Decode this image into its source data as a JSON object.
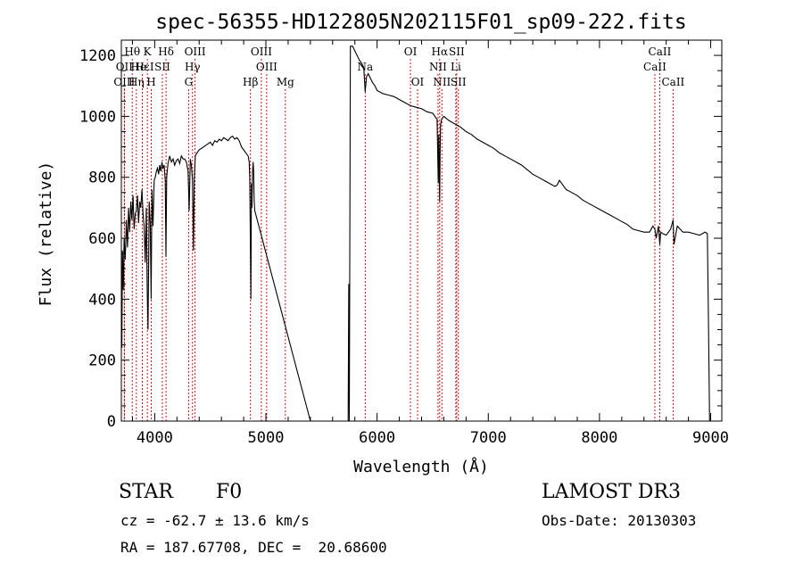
{
  "chart_data": {
    "type": "line",
    "title": "spec-56355-HD122805N202115F01_sp09-222.fits",
    "xlabel": "Wavelength (Å)",
    "ylabel": "Flux (relative)",
    "xlim": [
      3700,
      9100
    ],
    "ylim": [
      0,
      1250
    ],
    "xticks": [
      4000,
      5000,
      6000,
      7000,
      8000,
      9000
    ],
    "yticks": [
      0,
      200,
      400,
      600,
      800,
      1000,
      1200
    ],
    "series": [
      {
        "name": "flux",
        "x": [
          3700,
          3705,
          3710,
          3718,
          3725,
          3735,
          3745,
          3755,
          3765,
          3775,
          3785,
          3795,
          3805,
          3815,
          3825,
          3835,
          3845,
          3855,
          3865,
          3875,
          3885,
          3895,
          3905,
          3915,
          3925,
          3933,
          3940,
          3950,
          3960,
          3968,
          3975,
          3985,
          3995,
          4005,
          4015,
          4025,
          4035,
          4045,
          4055,
          4065,
          4075,
          4085,
          4095,
          4101,
          4108,
          4120,
          4135,
          4150,
          4165,
          4180,
          4195,
          4210,
          4225,
          4240,
          4255,
          4270,
          4285,
          4300,
          4310,
          4320,
          4330,
          4340,
          4348,
          4356,
          4365,
          4380,
          4400,
          4420,
          4440,
          4460,
          4480,
          4500,
          4520,
          4540,
          4560,
          4580,
          4600,
          4620,
          4640,
          4660,
          4680,
          4700,
          4720,
          4740,
          4760,
          4780,
          4800,
          4820,
          4840,
          4850,
          4855,
          4860,
          4865,
          4870,
          4875,
          4880,
          4885,
          4890,
          4895,
          4900,
          5400,
          5600,
          5700,
          5740,
          5745,
          5750,
          5760,
          5780,
          5800,
          5820,
          5840,
          5860,
          5880,
          5893,
          5905,
          5920,
          5940,
          5960,
          5980,
          6000,
          6050,
          6100,
          6150,
          6200,
          6250,
          6300,
          6350,
          6400,
          6450,
          6500,
          6540,
          6550,
          6555,
          6560,
          6563,
          6566,
          6570,
          6580,
          6600,
          6650,
          6700,
          6750,
          6800,
          6850,
          6900,
          6950,
          7000,
          7050,
          7100,
          7150,
          7200,
          7250,
          7300,
          7350,
          7400,
          7450,
          7500,
          7550,
          7600,
          7620,
          7640,
          7660,
          7700,
          7750,
          7800,
          7850,
          7900,
          7950,
          8000,
          8050,
          8100,
          8150,
          8200,
          8250,
          8300,
          8350,
          8400,
          8450,
          8480,
          8498,
          8510,
          8530,
          8542,
          8550,
          8570,
          8600,
          8640,
          8662,
          8670,
          8700,
          8750,
          8800,
          8850,
          8900,
          8950,
          8970,
          8980,
          8990,
          9000
        ],
        "y": [
          390,
          240,
          560,
          430,
          600,
          530,
          660,
          570,
          700,
          620,
          720,
          660,
          740,
          630,
          680,
          690,
          740,
          650,
          720,
          700,
          760,
          680,
          640,
          520,
          700,
          430,
          300,
          720,
          650,
          400,
          760,
          640,
          790,
          800,
          820,
          830,
          810,
          840,
          820,
          850,
          830,
          840,
          790,
          540,
          800,
          845,
          870,
          850,
          860,
          840,
          855,
          860,
          845,
          870,
          860,
          860,
          850,
          820,
          690,
          860,
          840,
          790,
          560,
          800,
          870,
          880,
          890,
          895,
          900,
          905,
          910,
          915,
          905,
          920,
          915,
          925,
          920,
          930,
          925,
          920,
          930,
          935,
          925,
          930,
          920,
          900,
          890,
          880,
          870,
          850,
          800,
          600,
          400,
          780,
          700,
          820,
          850,
          820,
          720,
          690,
          0,
          0,
          0,
          0,
          450,
          0,
          1230,
          1230,
          1215,
          1200,
          1185,
          1175,
          1160,
          1080,
          1130,
          1140,
          1125,
          1110,
          1100,
          1085,
          1075,
          1070,
          1065,
          1055,
          1045,
          1035,
          1030,
          1025,
          1015,
          1010,
          990,
          780,
          940,
          800,
          720,
          870,
          970,
          990,
          1000,
          985,
          975,
          965,
          950,
          940,
          925,
          915,
          905,
          895,
          880,
          870,
          860,
          850,
          840,
          825,
          810,
          800,
          790,
          780,
          770,
          775,
          790,
          780,
          760,
          750,
          740,
          725,
          715,
          705,
          695,
          685,
          675,
          665,
          655,
          645,
          630,
          625,
          620,
          620,
          640,
          630,
          600,
          640,
          580,
          620,
          615,
          610,
          630,
          660,
          580,
          640,
          620,
          620,
          615,
          610,
          620,
          615,
          340,
          0,
          0
        ]
      }
    ],
    "line_markers": [
      {
        "name": "Hθ",
        "wavelength": 3798,
        "row": 0
      },
      {
        "name": "OII",
        "wavelength": 3727,
        "row": 1
      },
      {
        "name": "OIII",
        "wavelength": 3727,
        "row": 2
      },
      {
        "name": "K",
        "wavelength": 3934,
        "row": 0
      },
      {
        "name": "Hε",
        "wavelength": 3889,
        "row": 1
      },
      {
        "name": "Hη",
        "wavelength": 3835,
        "row": 2
      },
      {
        "name": "He I",
        "wavelength": 3889,
        "row": 1
      },
      {
        "name": "H",
        "wavelength": 3969,
        "row": 2
      },
      {
        "name": "SII",
        "wavelength": 4069,
        "row": 1
      },
      {
        "name": "Hδ",
        "wavelength": 4102,
        "row": 0
      },
      {
        "name": "OIII",
        "wavelength": 4363,
        "row": 0
      },
      {
        "name": "Hγ",
        "wavelength": 4340,
        "row": 1
      },
      {
        "name": "G",
        "wavelength": 4305,
        "row": 2
      },
      {
        "name": "Hβ",
        "wavelength": 4861,
        "row": 2
      },
      {
        "name": "OIII",
        "wavelength": 4959,
        "row": 0
      },
      {
        "name": "OIII",
        "wavelength": 5007,
        "row": 1
      },
      {
        "name": "Mg",
        "wavelength": 5175,
        "row": 2
      },
      {
        "name": "Na",
        "wavelength": 5893,
        "row": 1
      },
      {
        "name": "OI",
        "wavelength": 6300,
        "row": 0
      },
      {
        "name": "OI",
        "wavelength": 6364,
        "row": 2
      },
      {
        "name": "Hα",
        "wavelength": 6563,
        "row": 0
      },
      {
        "name": "SII",
        "wavelength": 6716,
        "row": 0
      },
      {
        "name": "NII",
        "wavelength": 6548,
        "row": 1
      },
      {
        "name": "Li",
        "wavelength": 6708,
        "row": 1
      },
      {
        "name": "NII",
        "wavelength": 6583,
        "row": 2
      },
      {
        "name": "SII",
        "wavelength": 6731,
        "row": 2
      },
      {
        "name": "CaII",
        "wavelength": 8542,
        "row": 0
      },
      {
        "name": "CaII",
        "wavelength": 8498,
        "row": 1
      },
      {
        "name": "CaII",
        "wavelength": 8662,
        "row": 2
      }
    ]
  },
  "info": {
    "class": "STAR",
    "subclass": "F0",
    "survey": "LAMOST DR3",
    "redshift": "cz = -62.7 ± 13.6 km/s",
    "obs_date": "Obs-Date: 20130303",
    "coords": "RA = 187.67708, DEC =  20.68600"
  }
}
